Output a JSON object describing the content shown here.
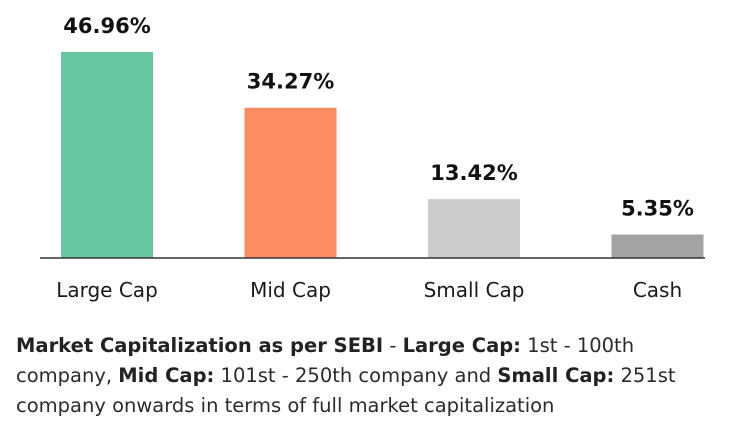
{
  "chart_data": {
    "type": "bar",
    "categories": [
      "Large Cap",
      "Mid Cap",
      "Small Cap",
      "Cash"
    ],
    "values": [
      46.96,
      34.27,
      13.42,
      5.35
    ],
    "value_labels": [
      "46.96%",
      "34.27%",
      "13.42%",
      "5.35%"
    ],
    "colors": [
      "#66c7a0",
      "#fc8d62",
      "#cccccc",
      "#a3a3a3"
    ],
    "baseline_color": "#333333",
    "title": "",
    "xlabel": "",
    "ylabel": "",
    "ylim": [
      0,
      46.96
    ],
    "grid": false,
    "legend": "none"
  },
  "footnote": {
    "p1_bold": "Market Capitalization as per SEBI",
    "p2": " - ",
    "p3_bold": "Large Cap:",
    "p4": " 1st - 100th company, ",
    "p5_bold": "Mid Cap:",
    "p6": " 101st - 250th company and ",
    "p7_bold": "Small Cap:",
    "p8": " 251st company onwards in terms of full market capitalization"
  }
}
